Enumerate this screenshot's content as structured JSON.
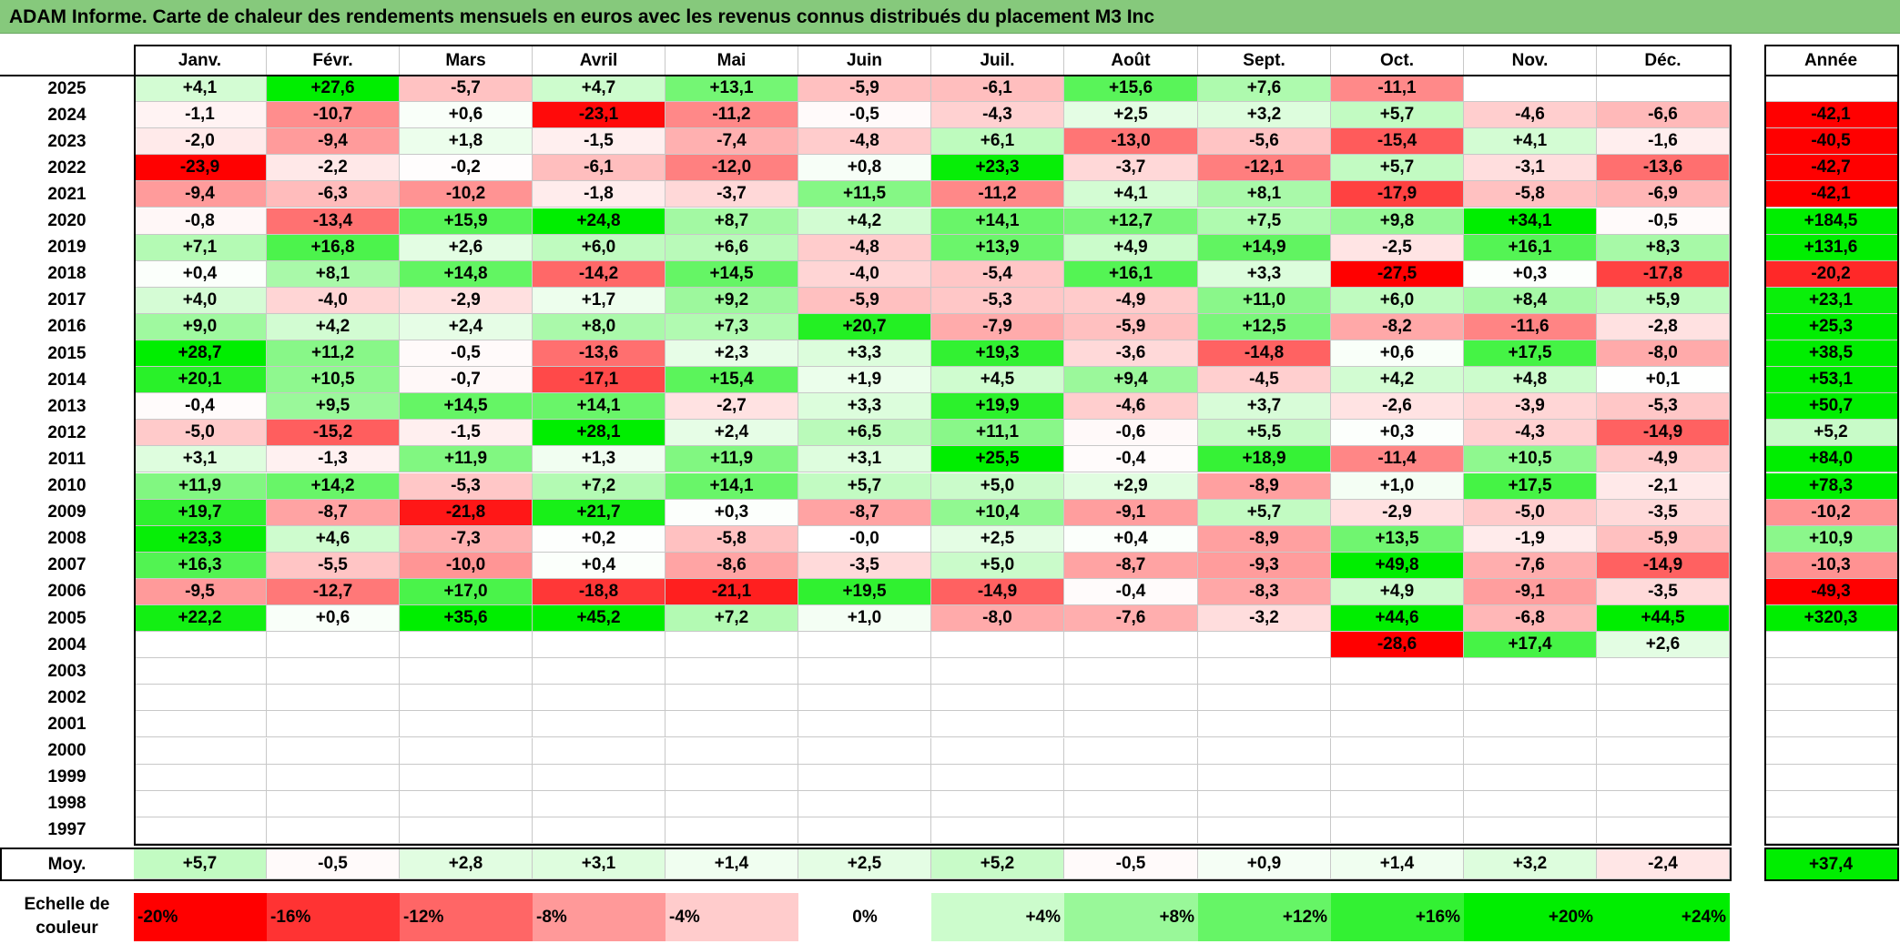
{
  "title": "ADAM Informe. Carte de chaleur des rendements mensuels en euros avec les revenus connus distribués du placement M3 Inc",
  "chart_data": {
    "type": "heatmap",
    "columns": [
      "Janv.",
      "Févr.",
      "Mars",
      "Avril",
      "Mai",
      "Juin",
      "Juil.",
      "Août",
      "Sept.",
      "Oct.",
      "Nov.",
      "Déc."
    ],
    "year_column": "Année",
    "rows": [
      {
        "year": "2025",
        "months": [
          "+4,1",
          "+27,6",
          "-5,7",
          "+4,7",
          "+13,1",
          "-5,9",
          "-6,1",
          "+15,6",
          "+7,6",
          "-11,1",
          "",
          ""
        ],
        "annual": ""
      },
      {
        "year": "2024",
        "months": [
          "-1,1",
          "-10,7",
          "+0,6",
          "-23,1",
          "-11,2",
          "-0,5",
          "-4,3",
          "+2,5",
          "+3,2",
          "+5,7",
          "-4,6",
          "-6,6"
        ],
        "annual": "-42,1"
      },
      {
        "year": "2023",
        "months": [
          "-2,0",
          "-9,4",
          "+1,8",
          "-1,5",
          "-7,4",
          "-4,8",
          "+6,1",
          "-13,0",
          "-5,6",
          "-15,4",
          "+4,1",
          "-1,6"
        ],
        "annual": "-40,5"
      },
      {
        "year": "2022",
        "months": [
          "-23,9",
          "-2,2",
          "-0,2",
          "-6,1",
          "-12,0",
          "+0,8",
          "+23,3",
          "-3,7",
          "-12,1",
          "+5,7",
          "-3,1",
          "-13,6"
        ],
        "annual": "-42,7"
      },
      {
        "year": "2021",
        "months": [
          "-9,4",
          "-6,3",
          "-10,2",
          "-1,8",
          "-3,7",
          "+11,5",
          "-11,2",
          "+4,1",
          "+8,1",
          "-17,9",
          "-5,8",
          "-6,9"
        ],
        "annual": "-42,1"
      },
      {
        "year": "2020",
        "months": [
          "-0,8",
          "-13,4",
          "+15,9",
          "+24,8",
          "+8,7",
          "+4,2",
          "+14,1",
          "+12,7",
          "+7,5",
          "+9,8",
          "+34,1",
          "-0,5"
        ],
        "annual": "+184,5"
      },
      {
        "year": "2019",
        "months": [
          "+7,1",
          "+16,8",
          "+2,6",
          "+6,0",
          "+6,6",
          "-4,8",
          "+13,9",
          "+4,9",
          "+14,9",
          "-2,5",
          "+16,1",
          "+8,3"
        ],
        "annual": "+131,6"
      },
      {
        "year": "2018",
        "months": [
          "+0,4",
          "+8,1",
          "+14,8",
          "-14,2",
          "+14,5",
          "-4,0",
          "-5,4",
          "+16,1",
          "+3,3",
          "-27,5",
          "+0,3",
          "-17,8"
        ],
        "annual": "-20,2"
      },
      {
        "year": "2017",
        "months": [
          "+4,0",
          "-4,0",
          "-2,9",
          "+1,7",
          "+9,2",
          "-5,9",
          "-5,3",
          "-4,9",
          "+11,0",
          "+6,0",
          "+8,4",
          "+5,9"
        ],
        "annual": "+23,1"
      },
      {
        "year": "2016",
        "months": [
          "+9,0",
          "+4,2",
          "+2,4",
          "+8,0",
          "+7,3",
          "+20,7",
          "-7,9",
          "-5,9",
          "+12,5",
          "-8,2",
          "-11,6",
          "-2,8"
        ],
        "annual": "+25,3"
      },
      {
        "year": "2015",
        "months": [
          "+28,7",
          "+11,2",
          "-0,5",
          "-13,6",
          "+2,3",
          "+3,3",
          "+19,3",
          "-3,6",
          "-14,8",
          "+0,6",
          "+17,5",
          "-8,0"
        ],
        "annual": "+38,5"
      },
      {
        "year": "2014",
        "months": [
          "+20,1",
          "+10,5",
          "-0,7",
          "-17,1",
          "+15,4",
          "+1,9",
          "+4,5",
          "+9,4",
          "-4,5",
          "+4,2",
          "+4,8",
          "+0,1"
        ],
        "annual": "+53,1"
      },
      {
        "year": "2013",
        "months": [
          "-0,4",
          "+9,5",
          "+14,5",
          "+14,1",
          "-2,7",
          "+3,3",
          "+19,9",
          "-4,6",
          "+3,7",
          "-2,6",
          "-3,9",
          "-5,3"
        ],
        "annual": "+50,7"
      },
      {
        "year": "2012",
        "months": [
          "-5,0",
          "-15,2",
          "-1,5",
          "+28,1",
          "+2,4",
          "+6,5",
          "+11,1",
          "-0,6",
          "+5,5",
          "+0,3",
          "-4,3",
          "-14,9"
        ],
        "annual": "+5,2"
      },
      {
        "year": "2011",
        "months": [
          "+3,1",
          "-1,3",
          "+11,9",
          "+1,3",
          "+11,9",
          "+3,1",
          "+25,5",
          "-0,4",
          "+18,9",
          "-11,4",
          "+10,5",
          "-4,9"
        ],
        "annual": "+84,0"
      },
      {
        "year": "2010",
        "months": [
          "+11,9",
          "+14,2",
          "-5,3",
          "+7,2",
          "+14,1",
          "+5,7",
          "+5,0",
          "+2,9",
          "-8,9",
          "+1,0",
          "+17,5",
          "-2,1"
        ],
        "annual": "+78,3"
      },
      {
        "year": "2009",
        "months": [
          "+19,7",
          "-8,7",
          "-21,8",
          "+21,7",
          "+0,3",
          "-8,7",
          "+10,4",
          "-9,1",
          "+5,7",
          "-2,9",
          "-5,0",
          "-3,5"
        ],
        "annual": "-10,2"
      },
      {
        "year": "2008",
        "months": [
          "+23,3",
          "+4,6",
          "-7,3",
          "+0,2",
          "-5,8",
          "-0,0",
          "+2,5",
          "+0,4",
          "-8,9",
          "+13,5",
          "-1,9",
          "-5,9"
        ],
        "annual": "+10,9"
      },
      {
        "year": "2007",
        "months": [
          "+16,3",
          "-5,5",
          "-10,0",
          "+0,4",
          "-8,6",
          "-3,5",
          "+5,0",
          "-8,7",
          "-9,3",
          "+49,8",
          "-7,6",
          "-14,9"
        ],
        "annual": "-10,3"
      },
      {
        "year": "2006",
        "months": [
          "-9,5",
          "-12,7",
          "+17,0",
          "-18,8",
          "-21,1",
          "+19,5",
          "-14,9",
          "-0,4",
          "-8,3",
          "+4,9",
          "-9,1",
          "-3,5"
        ],
        "annual": "-49,3"
      },
      {
        "year": "2005",
        "months": [
          "+22,2",
          "+0,6",
          "+35,6",
          "+45,2",
          "+7,2",
          "+1,0",
          "-8,0",
          "-7,6",
          "-3,2",
          "+44,6",
          "-6,8",
          "+44,5"
        ],
        "annual": "+320,3"
      },
      {
        "year": "2004",
        "months": [
          "",
          "",
          "",
          "",
          "",
          "",
          "",
          "",
          "",
          "-28,6",
          "+17,4",
          "+2,6"
        ],
        "annual": ""
      },
      {
        "year": "2003",
        "months": [
          "",
          "",
          "",
          "",
          "",
          "",
          "",
          "",
          "",
          "",
          "",
          ""
        ],
        "annual": ""
      },
      {
        "year": "2002",
        "months": [
          "",
          "",
          "",
          "",
          "",
          "",
          "",
          "",
          "",
          "",
          "",
          ""
        ],
        "annual": ""
      },
      {
        "year": "2001",
        "months": [
          "",
          "",
          "",
          "",
          "",
          "",
          "",
          "",
          "",
          "",
          "",
          ""
        ],
        "annual": ""
      },
      {
        "year": "2000",
        "months": [
          "",
          "",
          "",
          "",
          "",
          "",
          "",
          "",
          "",
          "",
          "",
          ""
        ],
        "annual": ""
      },
      {
        "year": "1999",
        "months": [
          "",
          "",
          "",
          "",
          "",
          "",
          "",
          "",
          "",
          "",
          "",
          ""
        ],
        "annual": ""
      },
      {
        "year": "1998",
        "months": [
          "",
          "",
          "",
          "",
          "",
          "",
          "",
          "",
          "",
          "",
          "",
          ""
        ],
        "annual": ""
      },
      {
        "year": "1997",
        "months": [
          "",
          "",
          "",
          "",
          "",
          "",
          "",
          "",
          "",
          "",
          "",
          ""
        ],
        "annual": ""
      }
    ],
    "average": {
      "label": "Moy.",
      "months": [
        "+5,7",
        "-0,5",
        "+2,8",
        "+3,1",
        "+1,4",
        "+2,5",
        "+5,2",
        "-0,5",
        "+0,9",
        "+1,4",
        "+3,2",
        "-2,4"
      ],
      "annual": "+37,4"
    },
    "color_scale": {
      "label_line1": "Echelle de",
      "label_line2": "couleur",
      "steps": [
        "-20%",
        "-16%",
        "-12%",
        "-8%",
        "-4%",
        "0%",
        "+4%",
        "+8%",
        "+12%",
        "+16%",
        "+20%",
        "+24%"
      ],
      "negative_color": "#ff0000",
      "neutral_color": "#ffffff",
      "positive_color": "#00ee00"
    }
  }
}
